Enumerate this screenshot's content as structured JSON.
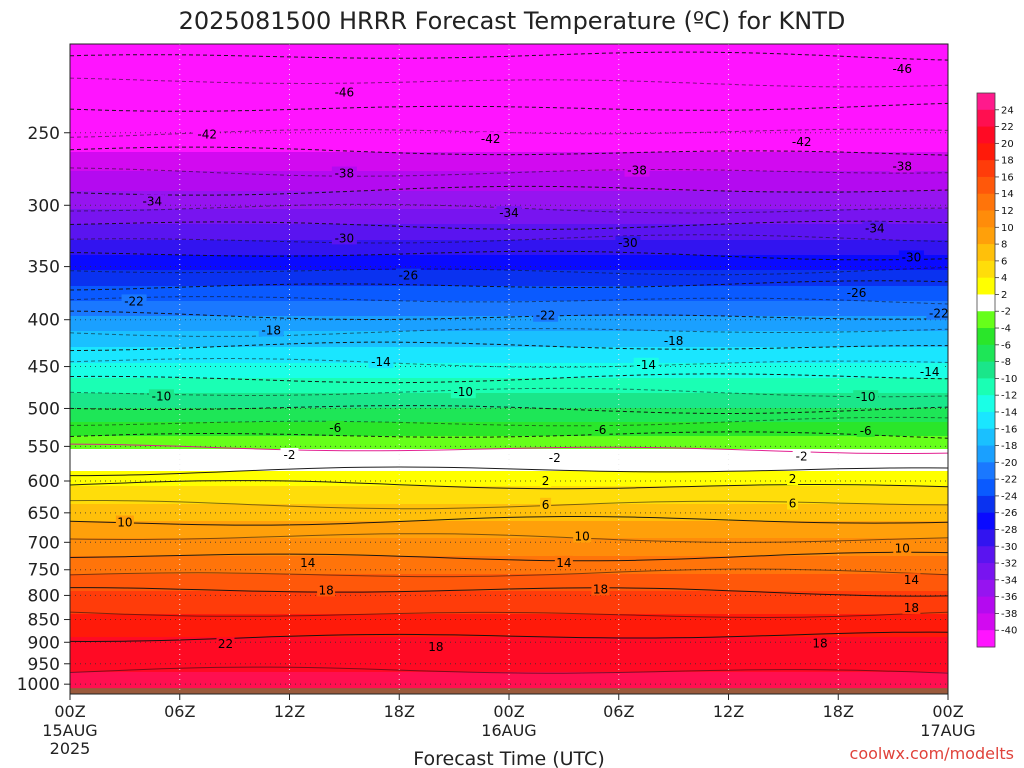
{
  "chart_data": {
    "type": "heatmap",
    "title": "2025081500 HRRR Forecast Temperature (ºC) for KNTD",
    "xlabel": "Forecast Time (UTC)",
    "ylabel": "",
    "credit": "coolwx.com/modelts",
    "x_ticks": [
      {
        "hour": 0,
        "label": "00Z",
        "sub": [
          "15AUG",
          "2025"
        ]
      },
      {
        "hour": 6,
        "label": "06Z",
        "sub": []
      },
      {
        "hour": 12,
        "label": "12Z",
        "sub": []
      },
      {
        "hour": 18,
        "label": "18Z",
        "sub": []
      },
      {
        "hour": 24,
        "label": "00Z",
        "sub": [
          "16AUG"
        ]
      },
      {
        "hour": 30,
        "label": "06Z",
        "sub": []
      },
      {
        "hour": 36,
        "label": "12Z",
        "sub": []
      },
      {
        "hour": 42,
        "label": "18Z",
        "sub": []
      },
      {
        "hour": 48,
        "label": "00Z",
        "sub": [
          "17AUG"
        ]
      }
    ],
    "xlim": [
      0,
      48
    ],
    "y_ticks": [
      250,
      300,
      350,
      400,
      450,
      500,
      550,
      600,
      650,
      700,
      750,
      800,
      850,
      900,
      950,
      1000
    ],
    "ylim": [
      1025,
      200
    ],
    "y_scale": "log",
    "ground_pressure": 1010,
    "contour_interval": 4,
    "colorbar": {
      "labels": [
        24,
        22,
        20,
        18,
        16,
        14,
        12,
        10,
        8,
        6,
        4,
        2,
        -2,
        -4,
        -6,
        -8,
        -10,
        -12,
        -14,
        -16,
        -18,
        -20,
        -22,
        -24,
        -26,
        -28,
        -30,
        -32,
        -34,
        -36,
        -38,
        -40
      ],
      "colors": [
        "#ff1a8c",
        "#ff0f50",
        "#ff0a24",
        "#ff1a0a",
        "#ff3c0a",
        "#ff580a",
        "#ff740a",
        "#ff8c0a",
        "#ffa00a",
        "#ffc00a",
        "#ffdd0a",
        "#ffff00",
        "#ffffff",
        "#66ff1a",
        "#2ae62a",
        "#1ee657",
        "#1ae68a",
        "#1affb4",
        "#1affe6",
        "#1ae6ff",
        "#1ac0ff",
        "#1aa0ff",
        "#1a78ff",
        "#0a5aff",
        "#0a32f0",
        "#0a0aff",
        "#3214f0",
        "#5a14f0",
        "#7814f0",
        "#9614f0",
        "#b40af0",
        "#d20af0",
        "#ff14ff"
      ]
    },
    "temperature_profile": [
      {
        "p": 1010,
        "t": 23.5
      },
      {
        "p": 1000,
        "t": 22.8
      },
      {
        "p": 950,
        "t": 21.5
      },
      {
        "p": 900,
        "t": 20.5
      },
      {
        "p": 850,
        "t": 18.5
      },
      {
        "p": 800,
        "t": 16.5
      },
      {
        "p": 750,
        "t": 13.5
      },
      {
        "p": 700,
        "t": 10.5
      },
      {
        "p": 650,
        "t": 7.0
      },
      {
        "p": 600,
        "t": 3.5
      },
      {
        "p": 575,
        "t": 1.0
      },
      {
        "p": 550,
        "t": -2.5
      },
      {
        "p": 500,
        "t": -8.0
      },
      {
        "p": 450,
        "t": -13.5
      },
      {
        "p": 400,
        "t": -19.5
      },
      {
        "p": 350,
        "t": -26.5
      },
      {
        "p": 300,
        "t": -34.5
      },
      {
        "p": 250,
        "t": -42.0
      },
      {
        "p": 200,
        "t": -49.0
      }
    ],
    "contour_labels": [
      {
        "value": -46,
        "hour": 15,
        "p": 226
      },
      {
        "value": -46,
        "hour": 45.5,
        "p": 213
      },
      {
        "value": -42,
        "hour": 7.5,
        "p": 251
      },
      {
        "value": -42,
        "hour": 23,
        "p": 254
      },
      {
        "value": -42,
        "hour": 40,
        "p": 256
      },
      {
        "value": -38,
        "hour": 15,
        "p": 277
      },
      {
        "value": -38,
        "hour": 31,
        "p": 275
      },
      {
        "value": -38,
        "hour": 45.5,
        "p": 272
      },
      {
        "value": -34,
        "hour": 4.5,
        "p": 297
      },
      {
        "value": -34,
        "hour": 24,
        "p": 306
      },
      {
        "value": -34,
        "hour": 44,
        "p": 318
      },
      {
        "value": -30,
        "hour": 15,
        "p": 326
      },
      {
        "value": -30,
        "hour": 30.5,
        "p": 330
      },
      {
        "value": -30,
        "hour": 46,
        "p": 342
      },
      {
        "value": -26,
        "hour": 18.5,
        "p": 358
      },
      {
        "value": -26,
        "hour": 43,
        "p": 374
      },
      {
        "value": -22,
        "hour": 3.5,
        "p": 382
      },
      {
        "value": -22,
        "hour": 26,
        "p": 396
      },
      {
        "value": -22,
        "hour": 47.5,
        "p": 394
      },
      {
        "value": -18,
        "hour": 11,
        "p": 411
      },
      {
        "value": -18,
        "hour": 33,
        "p": 422
      },
      {
        "value": -14,
        "hour": 17,
        "p": 445
      },
      {
        "value": -14,
        "hour": 31.5,
        "p": 448
      },
      {
        "value": -14,
        "hour": 47,
        "p": 456
      },
      {
        "value": -10,
        "hour": 5,
        "p": 485
      },
      {
        "value": -10,
        "hour": 21.5,
        "p": 480
      },
      {
        "value": -10,
        "hour": 43.5,
        "p": 486
      },
      {
        "value": -6,
        "hour": 14.5,
        "p": 525
      },
      {
        "value": -6,
        "hour": 29,
        "p": 528
      },
      {
        "value": -6,
        "hour": 43.5,
        "p": 529
      },
      {
        "value": -2,
        "hour": 12,
        "p": 562
      },
      {
        "value": -2,
        "hour": 26.5,
        "p": 566
      },
      {
        "value": -2,
        "hour": 40,
        "p": 564
      },
      {
        "value": 2,
        "hour": 26,
        "p": 600
      },
      {
        "value": 2,
        "hour": 39.5,
        "p": 597
      },
      {
        "value": 6,
        "hour": 26,
        "p": 637
      },
      {
        "value": 6,
        "hour": 39.5,
        "p": 635
      },
      {
        "value": 10,
        "hour": 3,
        "p": 666
      },
      {
        "value": 10,
        "hour": 28,
        "p": 690
      },
      {
        "value": 10,
        "hour": 45.5,
        "p": 711
      },
      {
        "value": 14,
        "hour": 13,
        "p": 737
      },
      {
        "value": 14,
        "hour": 27,
        "p": 737
      },
      {
        "value": 14,
        "hour": 46,
        "p": 770
      },
      {
        "value": 18,
        "hour": 14,
        "p": 790
      },
      {
        "value": 18,
        "hour": 29,
        "p": 788
      },
      {
        "value": 18,
        "hour": 46,
        "p": 826
      },
      {
        "value": 18,
        "hour": 20,
        "p": 911
      },
      {
        "value": 18,
        "hour": 41,
        "p": 903
      },
      {
        "value": 22,
        "hour": 8.5,
        "p": 904
      }
    ]
  }
}
